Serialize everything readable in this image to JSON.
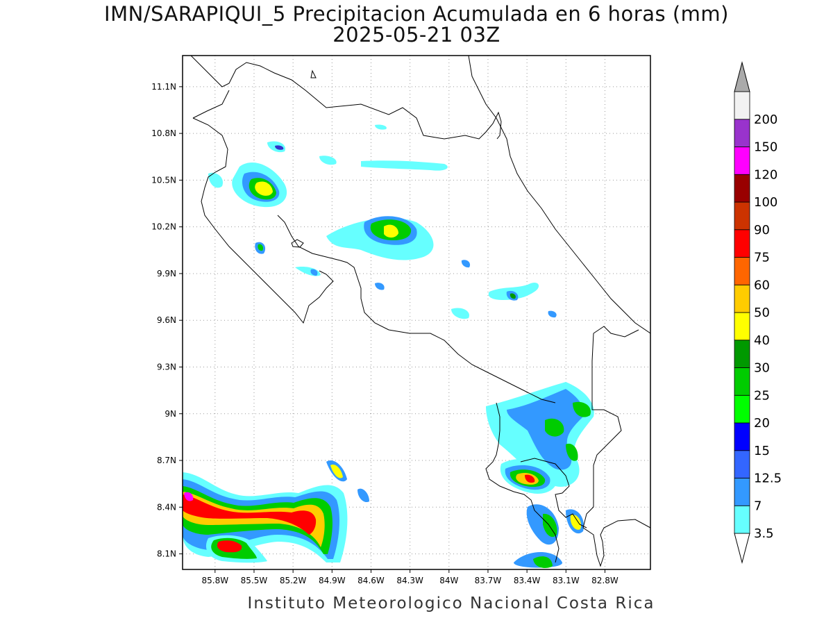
{
  "title": {
    "line1": "IMN/SARAPIQUI_5 Precipitacion Acumulada en 6 horas (mm)",
    "line2": "2025-05-21 03Z"
  },
  "footer": "Instituto Meteorologico Nacional Costa Rica",
  "map": {
    "lon_range": [
      -86.05,
      -82.45
    ],
    "lat_range": [
      8.0,
      11.3
    ],
    "lon_ticks": [
      {
        "value": -85.8,
        "label": "85.8W"
      },
      {
        "value": -85.5,
        "label": "85.5W"
      },
      {
        "value": -85.2,
        "label": "85.2W"
      },
      {
        "value": -84.9,
        "label": "84.9W"
      },
      {
        "value": -84.6,
        "label": "84.6W"
      },
      {
        "value": -84.3,
        "label": "84.3W"
      },
      {
        "value": -84.0,
        "label": "84W"
      },
      {
        "value": -83.7,
        "label": "83.7W"
      },
      {
        "value": -83.4,
        "label": "83.4W"
      },
      {
        "value": -83.1,
        "label": "83.1W"
      },
      {
        "value": -82.8,
        "label": "82.8W"
      }
    ],
    "lat_ticks": [
      {
        "value": 8.1,
        "label": "8.1N"
      },
      {
        "value": 8.4,
        "label": "8.4N"
      },
      {
        "value": 8.7,
        "label": "8.7N"
      },
      {
        "value": 9.0,
        "label": "9N"
      },
      {
        "value": 9.3,
        "label": "9.3N"
      },
      {
        "value": 9.6,
        "label": "9.6N"
      },
      {
        "value": 9.9,
        "label": "9.9N"
      },
      {
        "value": 10.2,
        "label": "10.2N"
      },
      {
        "value": 10.5,
        "label": "10.5N"
      },
      {
        "value": 10.8,
        "label": "10.8N"
      },
      {
        "value": 11.1,
        "label": "11.1N"
      }
    ],
    "grid": true
  },
  "colorbar": {
    "levels": [
      {
        "label": "3.5",
        "color": "#66ffff"
      },
      {
        "label": "7",
        "color": "#3399ff"
      },
      {
        "label": "12.5",
        "color": "#3366ff"
      },
      {
        "label": "15",
        "color": "#0000ff"
      },
      {
        "label": "20",
        "color": "#00ff00"
      },
      {
        "label": "25",
        "color": "#00cc00"
      },
      {
        "label": "30",
        "color": "#009900"
      },
      {
        "label": "40",
        "color": "#ffff00"
      },
      {
        "label": "50",
        "color": "#ffcc00"
      },
      {
        "label": "60",
        "color": "#ff6600"
      },
      {
        "label": "75",
        "color": "#ff0000"
      },
      {
        "label": "90",
        "color": "#cc3300"
      },
      {
        "label": "100",
        "color": "#990000"
      },
      {
        "label": "120",
        "color": "#ff00ff"
      },
      {
        "label": "150",
        "color": "#9933cc"
      },
      {
        "label": "200",
        "color": "#f2f2f2"
      }
    ],
    "over_color": "#aaaaaa"
  },
  "precip_cells": [
    {
      "lon": -85.47,
      "lat": 10.5,
      "mm": 40
    },
    {
      "lon": -84.53,
      "lat": 10.19,
      "mm": 40
    },
    {
      "lon": -85.53,
      "lat": 10.07,
      "mm": 15
    },
    {
      "lon": -85.38,
      "lat": 10.7,
      "mm": 12.5
    },
    {
      "lon": -84.8,
      "lat": 10.63,
      "mm": 7
    },
    {
      "lon": -84.0,
      "lat": 10.6,
      "mm": 3.5
    },
    {
      "lon": -83.55,
      "lat": 9.75,
      "mm": 25
    },
    {
      "lon": -85.98,
      "lat": 8.46,
      "mm": 120
    },
    {
      "lon": -85.75,
      "lat": 8.38,
      "mm": 75
    },
    {
      "lon": -85.5,
      "lat": 8.37,
      "mm": 60
    },
    {
      "lon": -85.2,
      "lat": 8.38,
      "mm": 60
    },
    {
      "lon": -84.95,
      "lat": 8.28,
      "mm": 75
    },
    {
      "lon": -85.6,
      "lat": 8.14,
      "mm": 60
    },
    {
      "lon": -84.87,
      "lat": 8.6,
      "mm": 30
    },
    {
      "lon": -83.37,
      "lat": 8.57,
      "mm": 75
    },
    {
      "lon": -83.25,
      "lat": 8.85,
      "mm": 30
    },
    {
      "lon": -83.05,
      "lat": 9.0,
      "mm": 30
    },
    {
      "lon": -83.25,
      "lat": 8.2,
      "mm": 25
    },
    {
      "lon": -83.12,
      "lat": 8.27,
      "mm": 40
    },
    {
      "lon": -83.3,
      "lat": 8.02,
      "mm": 25
    }
  ]
}
